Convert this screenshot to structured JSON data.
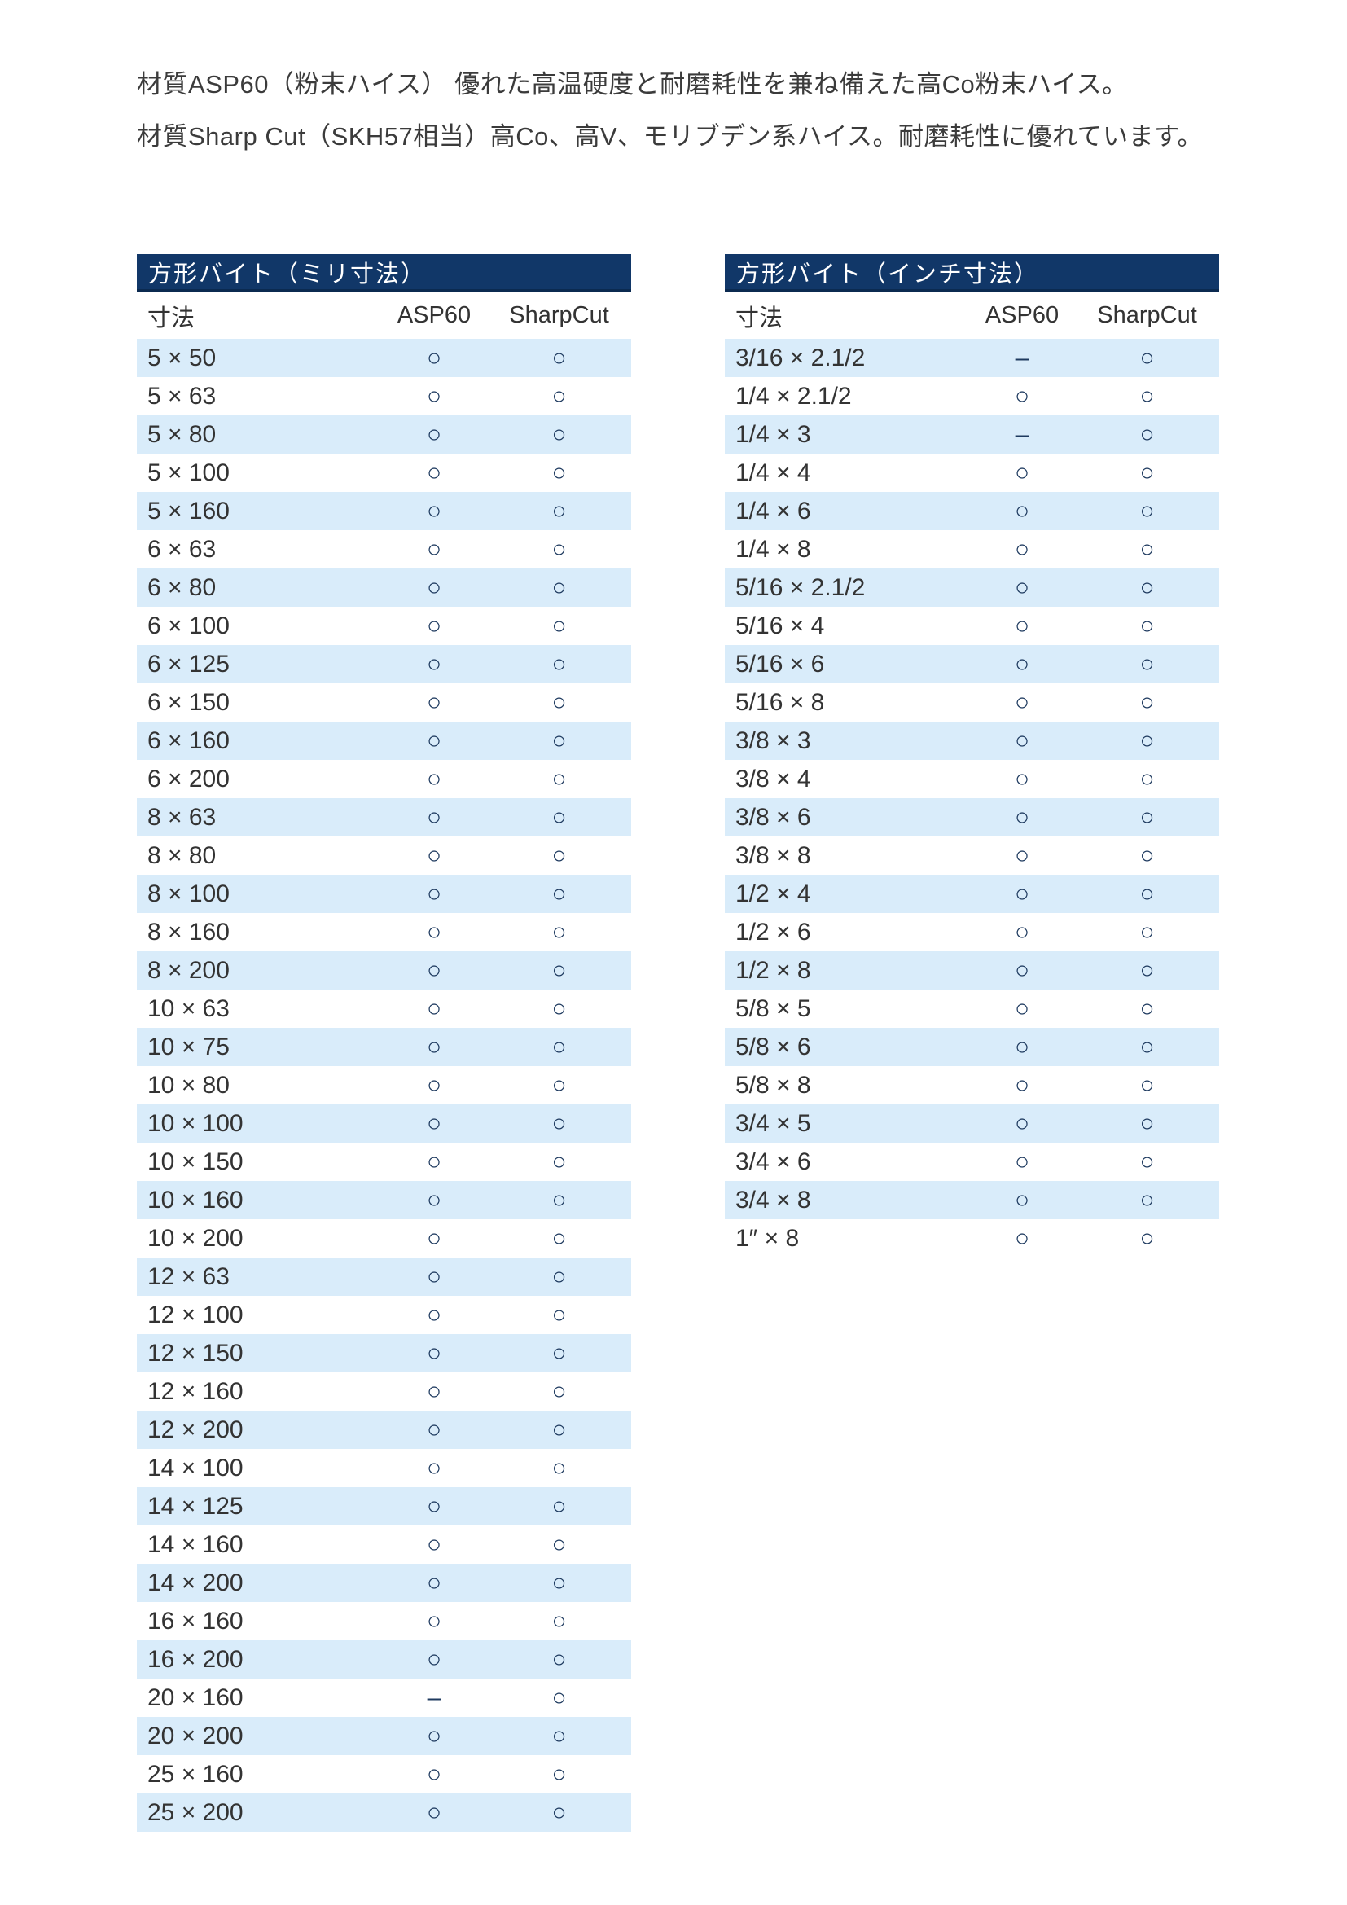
{
  "intro": {
    "lines": [
      "材質ASP60（粉末ハイス） 優れた高温硬度と耐磨耗性を兼ね備えた高Co粉末ハイス。",
      "材質Sharp Cut（SKH57相当）高Co、高V、モリブデン系ハイス。耐磨耗性に優れています。"
    ]
  },
  "symbols": {
    "available": "○",
    "not_available": "–"
  },
  "colors": {
    "title_band_bg": "#113768",
    "title_band_border": "#0b2a50",
    "title_text": "#ffffff",
    "row_alt_bg": "#d9ecfa",
    "mark": "#1e3a5f",
    "body_text": "#333333"
  },
  "tables": [
    {
      "title": "方形バイト（ミリ寸法）",
      "columns": [
        "寸法",
        "ASP60",
        "SharpCut"
      ],
      "rows": [
        [
          "5 × 50",
          "○",
          "○"
        ],
        [
          "5 × 63",
          "○",
          "○"
        ],
        [
          "5 × 80",
          "○",
          "○"
        ],
        [
          "5 × 100",
          "○",
          "○"
        ],
        [
          "5 × 160",
          "○",
          "○"
        ],
        [
          "6 × 63",
          "○",
          "○"
        ],
        [
          "6 × 80",
          "○",
          "○"
        ],
        [
          "6 × 100",
          "○",
          "○"
        ],
        [
          "6 × 125",
          "○",
          "○"
        ],
        [
          "6 × 150",
          "○",
          "○"
        ],
        [
          "6 × 160",
          "○",
          "○"
        ],
        [
          "6 × 200",
          "○",
          "○"
        ],
        [
          "8 × 63",
          "○",
          "○"
        ],
        [
          "8 × 80",
          "○",
          "○"
        ],
        [
          "8 × 100",
          "○",
          "○"
        ],
        [
          "8 × 160",
          "○",
          "○"
        ],
        [
          "8 × 200",
          "○",
          "○"
        ],
        [
          "10 × 63",
          "○",
          "○"
        ],
        [
          "10 × 75",
          "○",
          "○"
        ],
        [
          "10 × 80",
          "○",
          "○"
        ],
        [
          "10 × 100",
          "○",
          "○"
        ],
        [
          "10 × 150",
          "○",
          "○"
        ],
        [
          "10 × 160",
          "○",
          "○"
        ],
        [
          "10 × 200",
          "○",
          "○"
        ],
        [
          "12 × 63",
          "○",
          "○"
        ],
        [
          "12 × 100",
          "○",
          "○"
        ],
        [
          "12 × 150",
          "○",
          "○"
        ],
        [
          "12 × 160",
          "○",
          "○"
        ],
        [
          "12 × 200",
          "○",
          "○"
        ],
        [
          "14 × 100",
          "○",
          "○"
        ],
        [
          "14 × 125",
          "○",
          "○"
        ],
        [
          "14 × 160",
          "○",
          "○"
        ],
        [
          "14 × 200",
          "○",
          "○"
        ],
        [
          "16 × 160",
          "○",
          "○"
        ],
        [
          "16 × 200",
          "○",
          "○"
        ],
        [
          "20 × 160",
          "–",
          "○"
        ],
        [
          "20 × 200",
          "○",
          "○"
        ],
        [
          "25 × 160",
          "○",
          "○"
        ],
        [
          "25 × 200",
          "○",
          "○"
        ]
      ]
    },
    {
      "title": "方形バイト（インチ寸法）",
      "columns": [
        "寸法",
        "ASP60",
        "SharpCut"
      ],
      "rows": [
        [
          "3/16 × 2.1/2",
          "–",
          "○"
        ],
        [
          "1/4 × 2.1/2",
          "○",
          "○"
        ],
        [
          "1/4 × 3",
          "–",
          "○"
        ],
        [
          "1/4 × 4",
          "○",
          "○"
        ],
        [
          "1/4 × 6",
          "○",
          "○"
        ],
        [
          "1/4 × 8",
          "○",
          "○"
        ],
        [
          "5/16 × 2.1/2",
          "○",
          "○"
        ],
        [
          "5/16 × 4",
          "○",
          "○"
        ],
        [
          "5/16 × 6",
          "○",
          "○"
        ],
        [
          "5/16 × 8",
          "○",
          "○"
        ],
        [
          "3/8 × 3",
          "○",
          "○"
        ],
        [
          "3/8 × 4",
          "○",
          "○"
        ],
        [
          "3/8 × 6",
          "○",
          "○"
        ],
        [
          "3/8 × 8",
          "○",
          "○"
        ],
        [
          "1/2 × 4",
          "○",
          "○"
        ],
        [
          "1/2 × 6",
          "○",
          "○"
        ],
        [
          "1/2 × 8",
          "○",
          "○"
        ],
        [
          "5/8 × 5",
          "○",
          "○"
        ],
        [
          "5/8 × 6",
          "○",
          "○"
        ],
        [
          "5/8 × 8",
          "○",
          "○"
        ],
        [
          "3/4 × 5",
          "○",
          "○"
        ],
        [
          "3/4 × 6",
          "○",
          "○"
        ],
        [
          "3/4 × 8",
          "○",
          "○"
        ],
        [
          "1″ × 8",
          "○",
          "○"
        ]
      ]
    }
  ]
}
